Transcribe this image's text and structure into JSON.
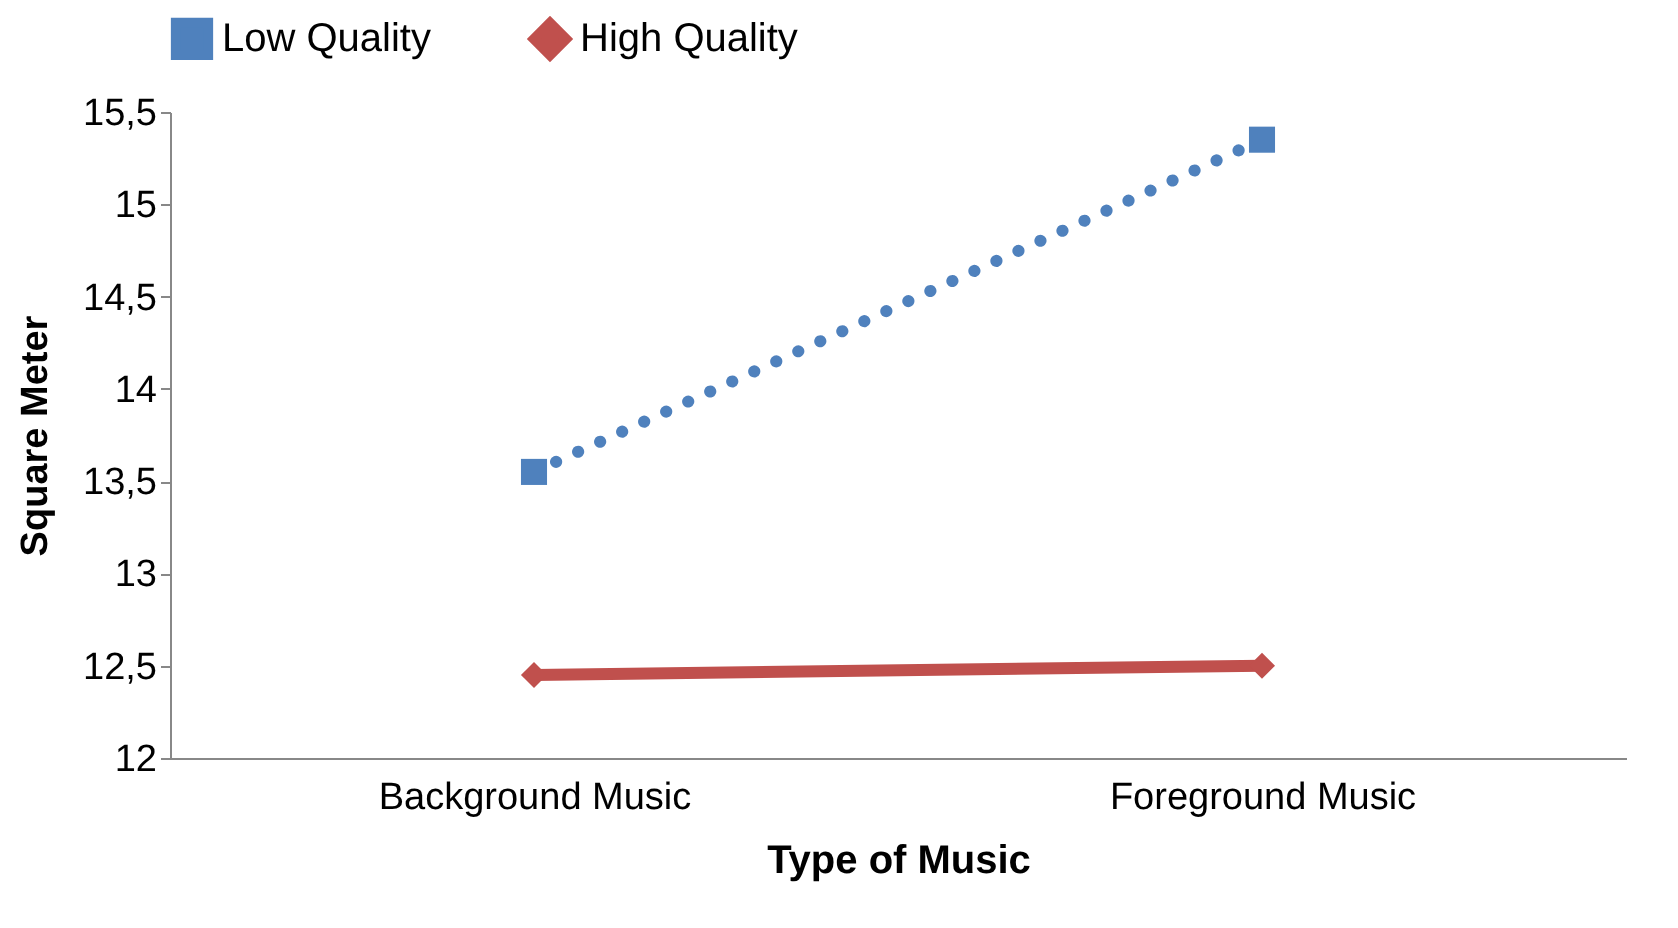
{
  "chart_data": {
    "type": "line",
    "xlabel": "Type of Music",
    "ylabel": "Square Meter",
    "categories": [
      "Background Music",
      "Foreground Music"
    ],
    "series": [
      {
        "name": "Low Quality",
        "color": "#4f81bd",
        "values": [
          13.55,
          15.35
        ],
        "marker": "square",
        "line_style": "dotted"
      },
      {
        "name": "High Quality",
        "color": "#c0504d",
        "values": [
          12.45,
          12.5
        ],
        "marker": "diamond",
        "line_style": "solid"
      }
    ],
    "ylim": [
      12,
      15.5
    ],
    "yticks": [
      {
        "value": 12,
        "label": "12"
      },
      {
        "value": 12.5,
        "label": "12,5"
      },
      {
        "value": 13,
        "label": "13"
      },
      {
        "value": 13.5,
        "label": "13,5"
      },
      {
        "value": 14,
        "label": "14"
      },
      {
        "value": 14.5,
        "label": "14,5"
      },
      {
        "value": 15,
        "label": "15"
      },
      {
        "value": 15.5,
        "label": "15,5"
      }
    ],
    "grid": false,
    "legend": "top"
  }
}
